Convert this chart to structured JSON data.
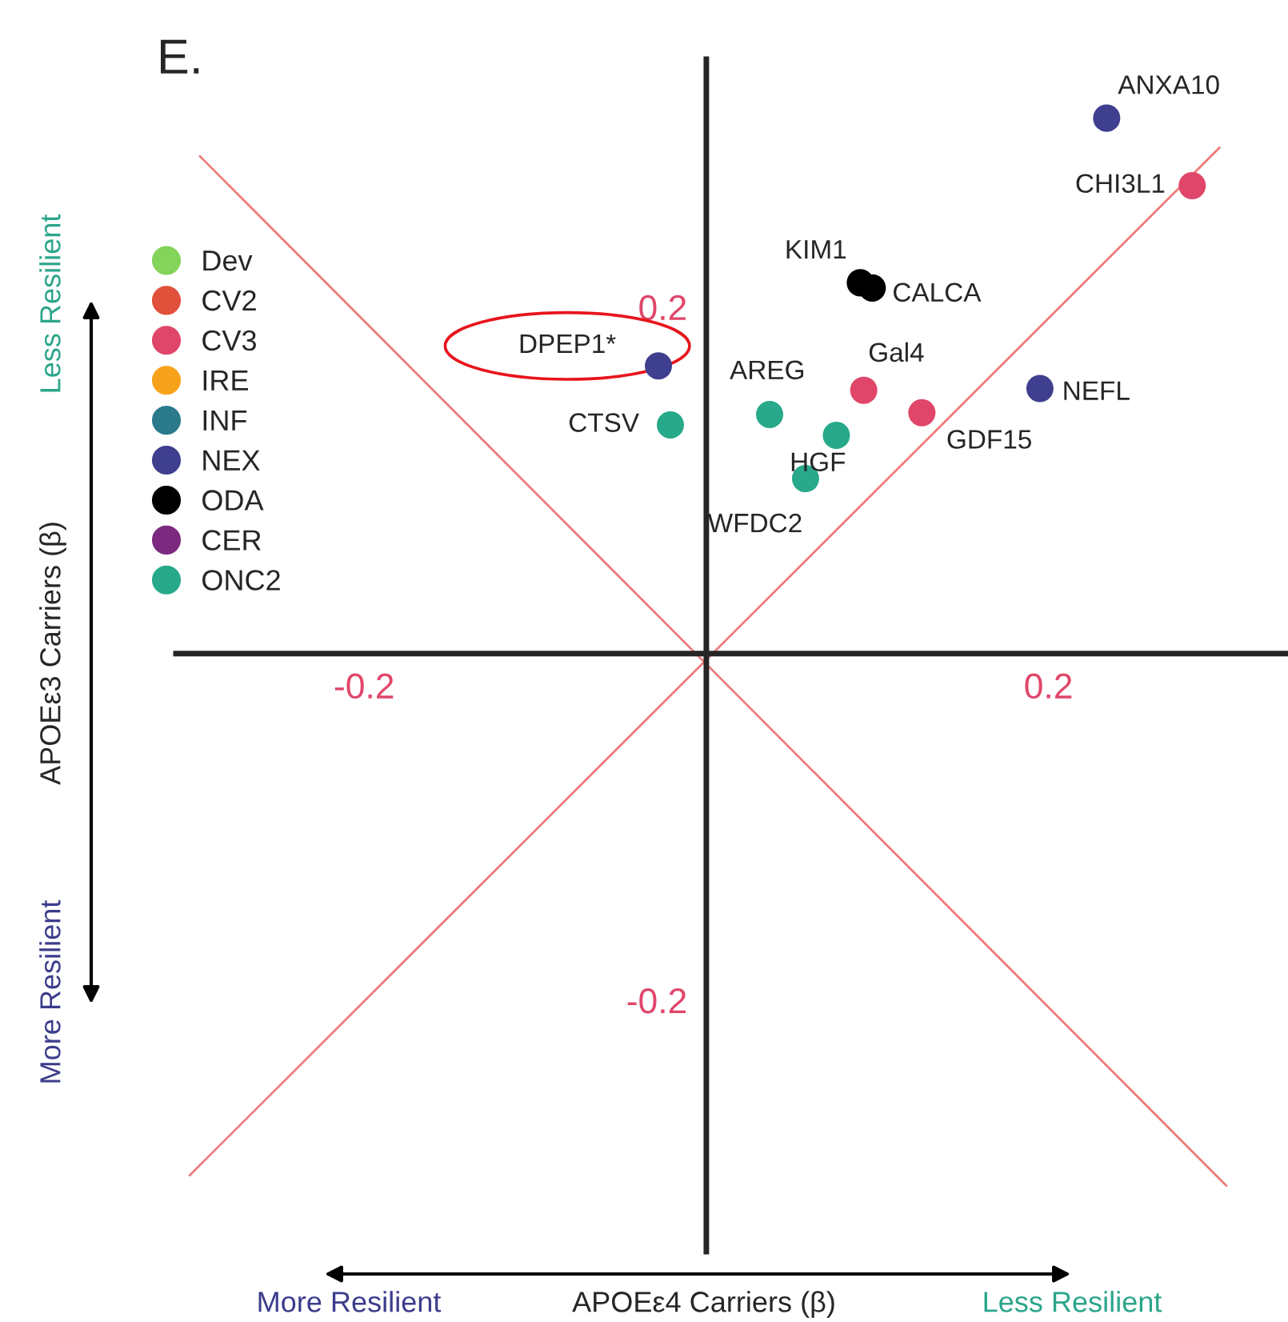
{
  "chart_data": {
    "type": "scatter",
    "title": "E.",
    "xlabel": "APOEε4 Carriers (β)",
    "ylabel": "APOEε3 Carriers (β)",
    "xlim": [
      -0.31,
      0.34
    ],
    "ylim": [
      -0.345,
      0.343
    ],
    "xticks": [
      -0.2,
      0.2
    ],
    "yticks": [
      -0.2,
      0.2
    ],
    "grid": false,
    "legend": "top left",
    "marker": "circle",
    "series": [
      {
        "name": "Dev",
        "color": "#84d35a"
      },
      {
        "name": "CV2",
        "color": "#e0503a"
      },
      {
        "name": "CV3",
        "color": "#e0466a",
        "x": [
          0.284,
          0.092,
          0.126
        ],
        "values": [
          0.27,
          0.152,
          0.139
        ]
      },
      {
        "name": "IRE",
        "color": "#f7a21b"
      },
      {
        "name": "INF",
        "color": "#2a7a8c"
      },
      {
        "name": "NEX",
        "color": "#3f3f8f",
        "x": [
          0.234,
          -0.028,
          0.195
        ],
        "values": [
          0.309,
          0.166,
          0.153
        ]
      },
      {
        "name": "ODA",
        "color": "#000000",
        "x": [
          0.09,
          0.097
        ],
        "values": [
          0.214,
          0.211
        ]
      },
      {
        "name": "CER",
        "color": "#7b2a7f"
      },
      {
        "name": "ONC2",
        "color": "#27a98a",
        "x": [
          -0.021,
          0.037,
          0.076,
          0.058
        ],
        "values": [
          0.132,
          0.138,
          0.126,
          0.101
        ]
      },
      {
        "type": "line",
        "marker": "none",
        "color": "#f07a7a",
        "x": [
          -0.302,
          0.3
        ],
        "values": [
          -0.301,
          0.292
        ]
      },
      {
        "type": "line",
        "marker": "none",
        "color": "#f07a7a",
        "x": [
          -0.296,
          0.304
        ],
        "values": [
          0.287,
          -0.307
        ]
      }
    ],
    "annotations": [
      {
        "text": "ANXA10",
        "x": 0.234,
        "y": 0.309
      },
      {
        "text": "CHI3L1",
        "x": 0.284,
        "y": 0.27
      },
      {
        "text": "KIM1",
        "x": 0.09,
        "y": 0.214
      },
      {
        "text": "CALCA",
        "x": 0.097,
        "y": 0.211
      },
      {
        "text": "DPEP1*",
        "x": -0.028,
        "y": 0.166
      },
      {
        "text": "CTSV",
        "x": -0.021,
        "y": 0.132
      },
      {
        "text": "AREG",
        "x": 0.037,
        "y": 0.138
      },
      {
        "text": "Gal4",
        "x": 0.092,
        "y": 0.152
      },
      {
        "text": "GDF15",
        "x": 0.126,
        "y": 0.139
      },
      {
        "text": "NEFL",
        "x": 0.195,
        "y": 0.153
      },
      {
        "text": "HGF",
        "x": 0.076,
        "y": 0.126
      },
      {
        "text": "WFDC2",
        "x": 0.058,
        "y": 0.101
      },
      "Less Resilient",
      "More Resilient",
      "More Resilient",
      "Less Resilient"
    ]
  }
}
